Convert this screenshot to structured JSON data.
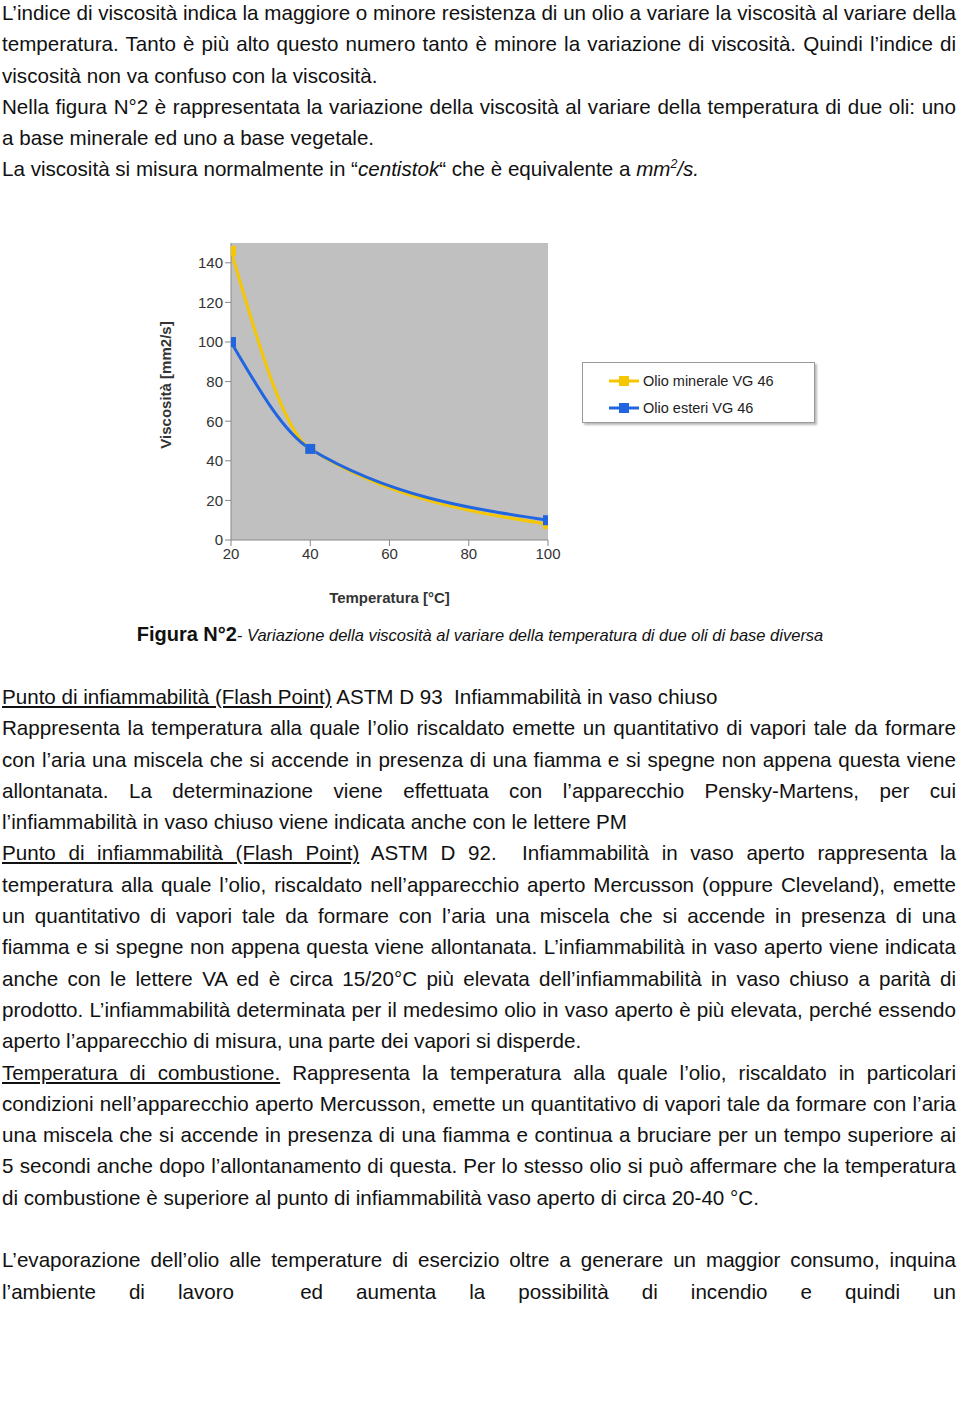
{
  "document": {
    "top_paragraphs": [
      [
        {
          "text": "L’indice di viscosità indica la maggiore o minore resistenza di un olio a variare la viscosità al variare della temperatura. Tanto è più alto questo numero tanto è minore la variazione di viscosità. Quindi l’indice di viscosità non va confuso con la viscosità."
        }
      ],
      [
        {
          "text": "Nella figura N°2 è rappresentata la variazione della viscosità al variare della temperatura di due oli: uno a base minerale ed uno a base vegetale."
        }
      ],
      [
        {
          "text": "La viscosità si misura normalmente in “"
        },
        {
          "text": "centistok",
          "italic": true
        },
        {
          "text": "“ che è equivalente a "
        },
        {
          "text": "mm",
          "italic": true
        },
        {
          "text": "2",
          "italic": true,
          "sup": true
        },
        {
          "text": "/s.",
          "italic": true
        }
      ]
    ],
    "caption": [
      {
        "text": "Figura N°2",
        "bold": true
      },
      {
        "text": "- "
      },
      {
        "text": "Variazione della viscosità al variare della temperatura di due oli di base diversa",
        "italic": true
      }
    ],
    "bottom_sections": [
      [
        [
          {
            "text": "Punto di infiammabilità (Flash Point)",
            "underline": true
          },
          {
            "text": " ASTM D 93  Infiammabilità in vaso chiuso"
          }
        ],
        [
          {
            "text": "Rappresenta la temperatura alla quale l’olio riscaldato emette un quantitativo di vapori tale da formare con l’aria una miscela che si accende in presenza di una fiamma e si spegne non appena questa viene allontanata. La determinazione viene effettuata con l’apparecchio Pensky-Martens, per cui l’infiammabilità in vaso chiuso viene indicata anche con le lettere PM"
          }
        ],
        [
          {
            "text": "Punto di infiammabilità (Flash Point)",
            "underline": true
          },
          {
            "text": " ASTM D 92.  Infiammabilità in vaso aperto rappresenta la temperatura alla quale l’olio, riscaldato nell’apparecchio aperto Mercusson (oppure Cleveland), emette un quantitativo di vapori tale da formare con l’aria una miscela che si accende in presenza di una fiamma e si spegne non appena questa viene allontanata. L’infiammabilità in vaso aperto viene indicata anche con le lettere VA ed è circa 15/20°C più elevata dell’infiammabilità in vaso chiuso a parità di prodotto. L’infiammabilità determinata per il medesimo olio in vaso aperto è più elevata, perché essendo aperto l’apparecchio di misura, una parte dei vapori si disperde."
          }
        ],
        [
          {
            "text": "Temperatura di combustione.",
            "underline": true
          },
          {
            "text": " Rappresenta la temperatura alla quale l’olio, riscaldato in particolari condizioni nell’apparecchio aperto Mercusson, emette un quantitativo di vapori tale da formare con l’aria una miscela che si accende in presenza di una fiamma e continua a bruciare per un tempo superiore ai 5 secondi anche dopo l’allontanamento di questa. Per lo stesso olio si può affermare che la temperatura di combustione è superiore al punto di infiammabilità vaso aperto di circa 20-40 °C."
          }
        ]
      ],
      [
        [
          {
            "text": "L’evaporazione dell’olio alle temperature di esercizio oltre a generare un maggior consumo, inquina l’ambiente di lavoro  ed aumenta la possibilità di incendio e quindi un"
          }
        ]
      ]
    ]
  },
  "chart_data": {
    "type": "line",
    "x_label": "Temperatura [°C]",
    "y_label": "Viscosità [mm2/s]",
    "x": [
      20,
      40,
      100
    ],
    "series": [
      {
        "name": "Olio minerale VG 46",
        "color": "#f6c700",
        "marker": "square",
        "values": [
          146,
          46,
          8
        ]
      },
      {
        "name": "Olio esteri VG 46",
        "color": "#2166e0",
        "marker": "square",
        "values": [
          100,
          46,
          10
        ]
      }
    ],
    "xlim": [
      20,
      100
    ],
    "xticks": [
      20,
      40,
      60,
      80,
      100
    ],
    "ylim": [
      0,
      150
    ],
    "yticks": [
      0,
      20,
      40,
      60,
      80,
      100,
      120,
      140
    ],
    "grid": false,
    "legend": "right"
  }
}
